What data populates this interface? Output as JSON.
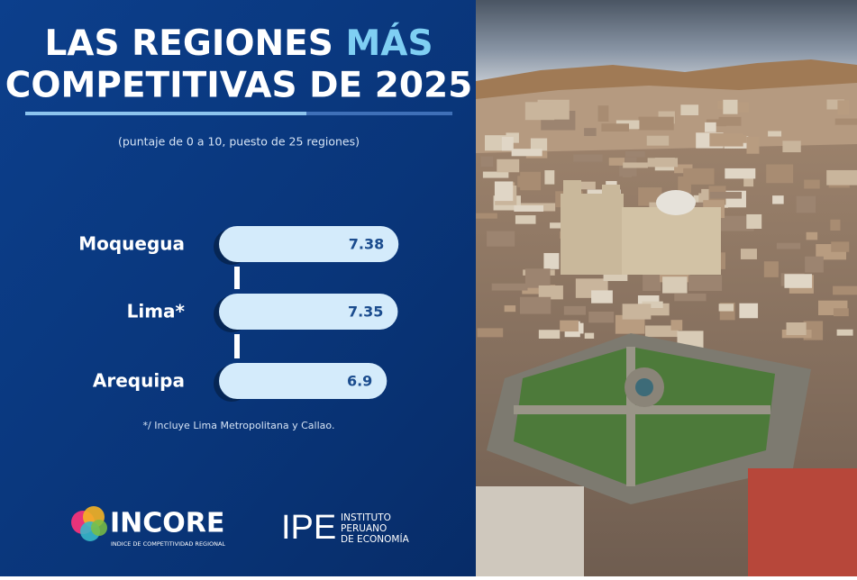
{
  "chart_data": {
    "type": "bar",
    "orientation": "horizontal",
    "title": [
      "LAS REGIONES",
      "MÁS",
      "COMPETITIVAS DE 2025"
    ],
    "subtitle": "(puntaje de 0 a 10, puesto de 25 regiones)",
    "categories": [
      "Moquegua",
      "Lima*",
      "Arequipa"
    ],
    "values": [
      7.38,
      7.35,
      6.9
    ],
    "color": "#d4ebfb",
    "note": "*/ Incluye Lima Metropolitana y Callao.",
    "logos": {
      "incore": "INCORE",
      "incore_sub": "INDICE DE COMPETITIVIDAD REGIONAL",
      "ipe": "IPE",
      "ipe_lines": [
        "INSTITUTO",
        "PERUANO",
        "DE ECONOMÍA"
      ]
    }
  }
}
